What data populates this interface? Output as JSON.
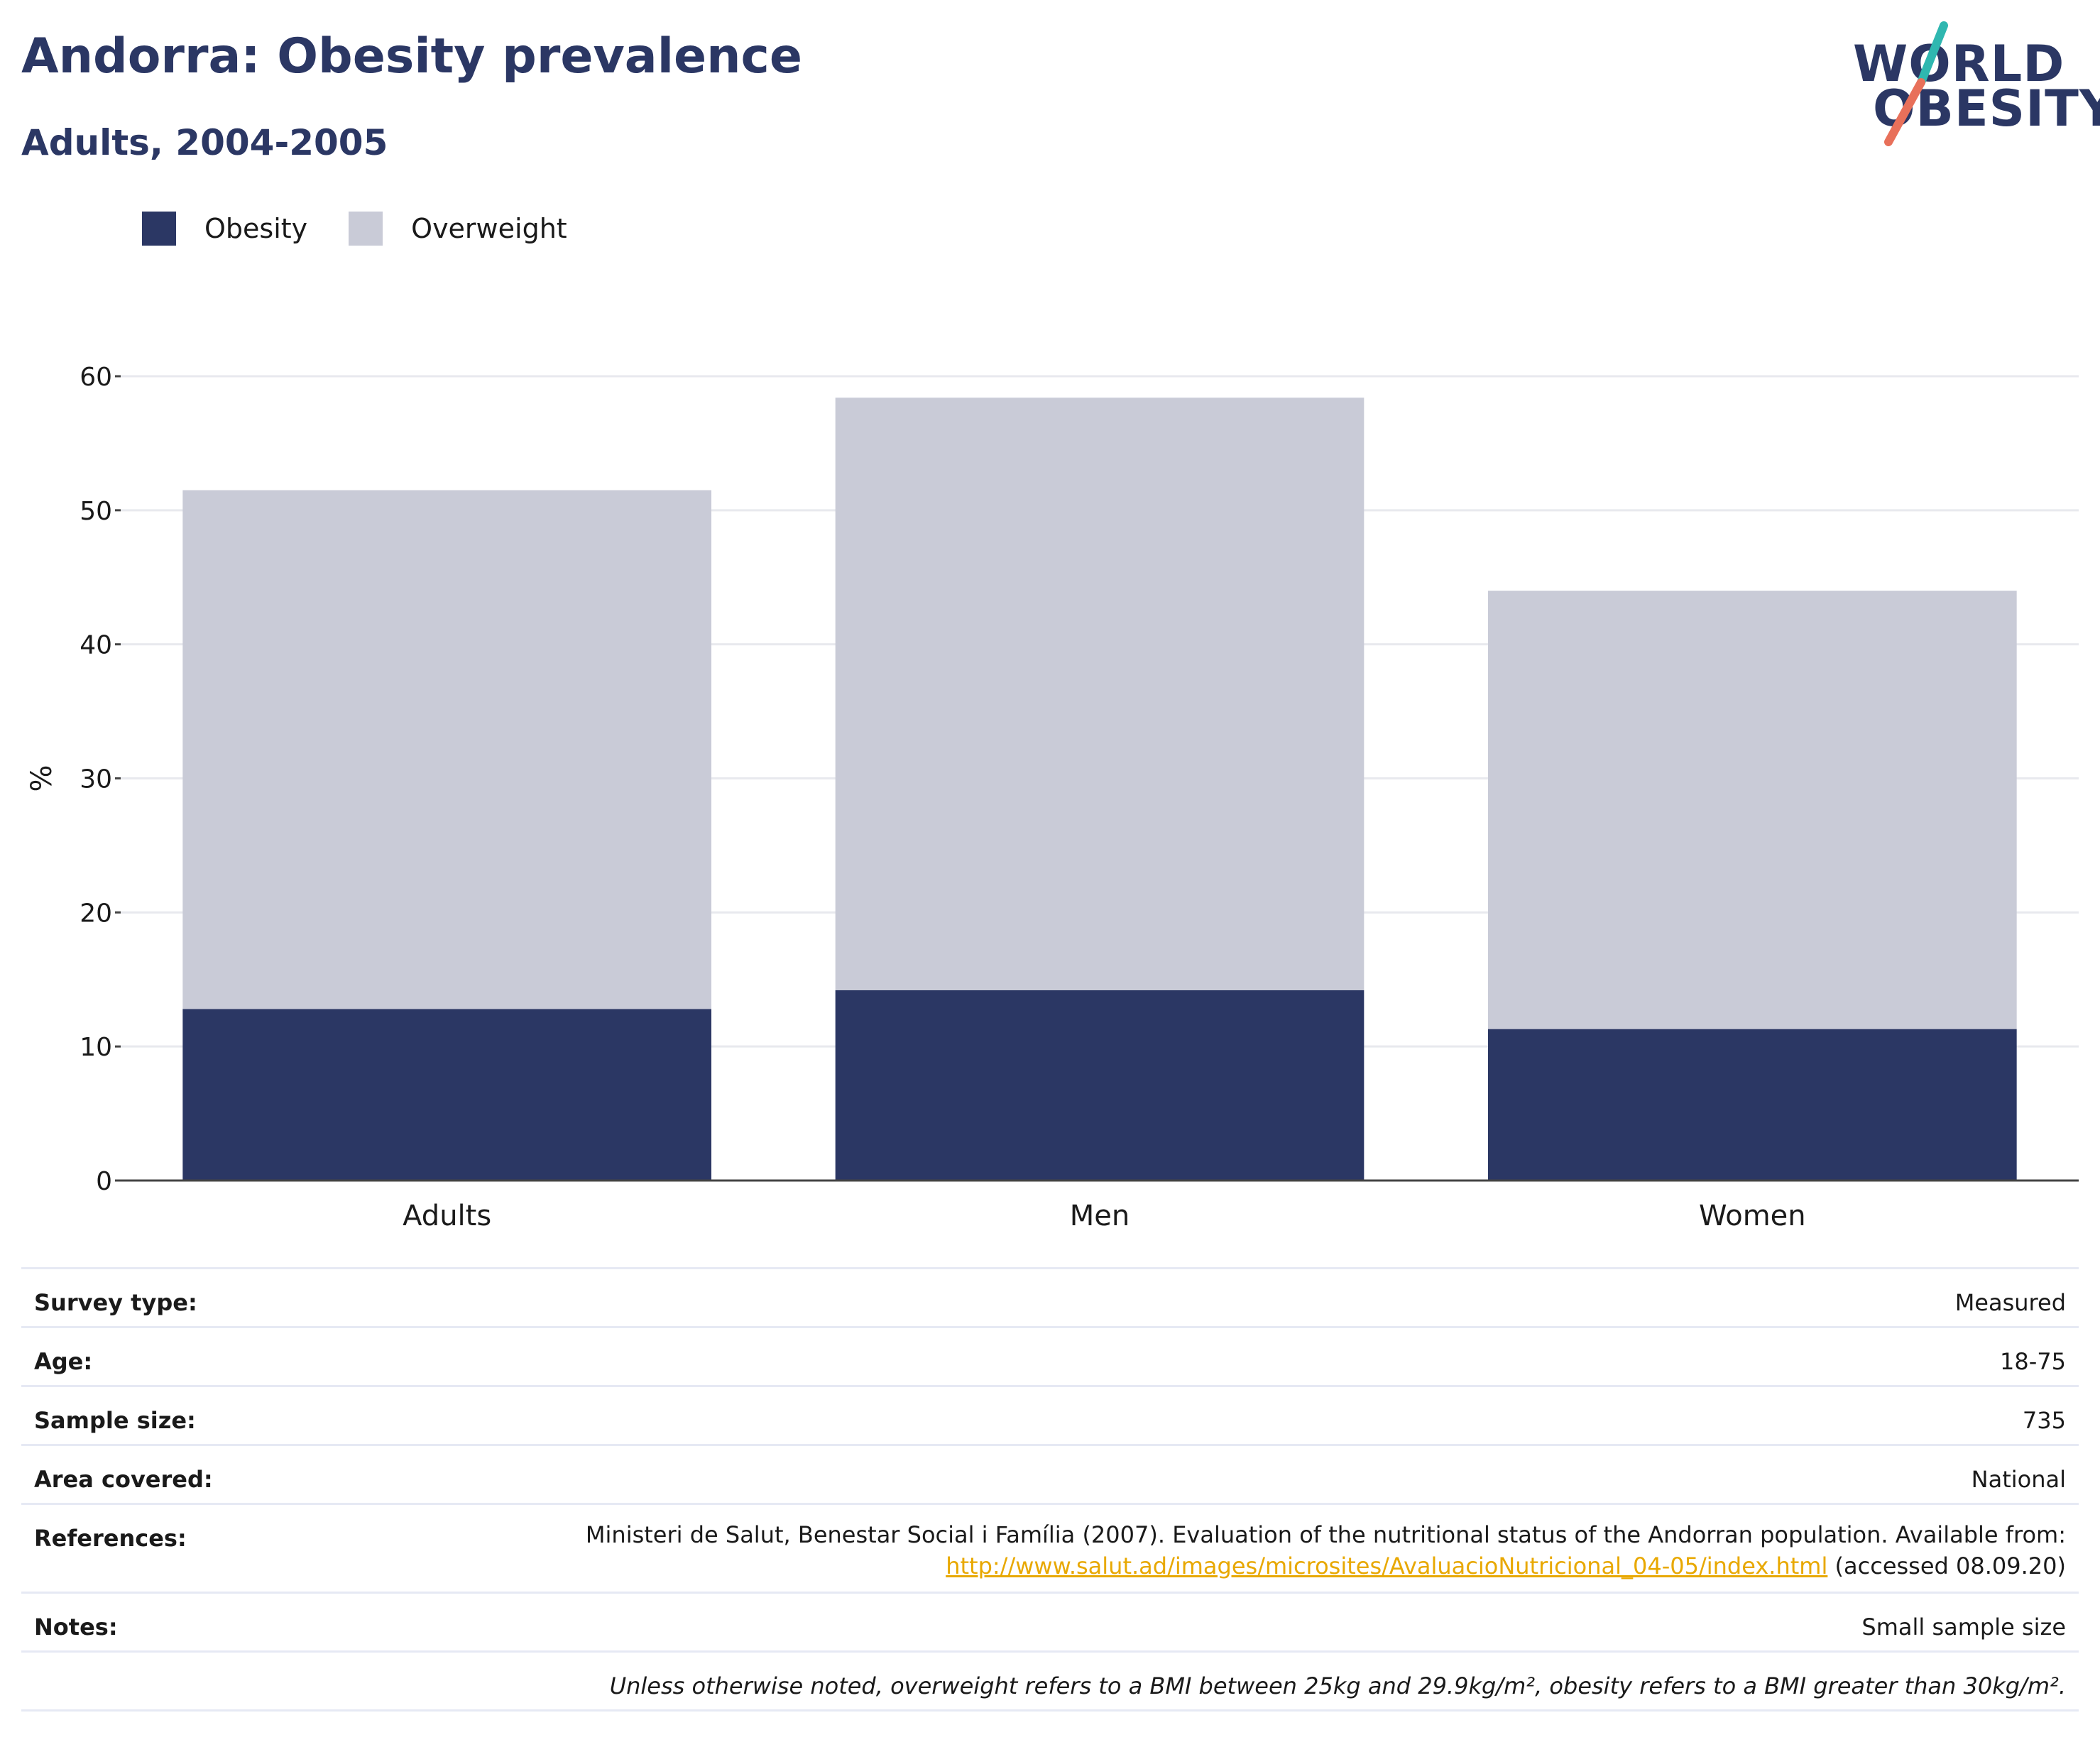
{
  "header": {
    "title": "Andorra: Obesity prevalence",
    "subtitle": "Adults, 2004-2005"
  },
  "logo": {
    "line1": "WORLD",
    "line2": "OBESITY"
  },
  "colors": {
    "obesity": "#2b3764",
    "overweight": "#c9cbd7",
    "accent_teal": "#2fb7b0",
    "accent_coral": "#e8705a",
    "link": "#e8a800"
  },
  "chart_data": {
    "type": "bar",
    "stacked": true,
    "categories": [
      "Adults",
      "Men",
      "Women"
    ],
    "series": [
      {
        "name": "Obesity",
        "values": [
          12.8,
          14.2,
          11.3
        ]
      },
      {
        "name": "Overweight",
        "values": [
          38.7,
          44.2,
          32.7
        ]
      }
    ],
    "ylabel": "%",
    "ylim": [
      0,
      60
    ],
    "yticks": [
      "0",
      "10",
      "20",
      "30",
      "40",
      "50",
      "60"
    ],
    "grid": true,
    "legend_position": "top-left"
  },
  "info": {
    "survey_type": {
      "label": "Survey type:",
      "value": "Measured"
    },
    "age": {
      "label": "Age:",
      "value": "18-75"
    },
    "sample_size": {
      "label": "Sample size:",
      "value": "735"
    },
    "area_covered": {
      "label": "Area covered:",
      "value": "National"
    },
    "references": {
      "label": "References:",
      "line1": "Ministeri de Salut, Benestar Social i Família (2007). Evaluation of the nutritional status of the Andorran population. Available from:",
      "link": "http://www.salut.ad/images/microsites/AvaluacioNutricional_04-05/index.html",
      "suffix": " (accessed 08.09.20)"
    },
    "notes": {
      "label": "Notes:",
      "value": "Small sample size"
    },
    "footnote": "Unless otherwise noted, overweight refers to a BMI between 25kg and 29.9kg/m², obesity refers to a BMI greater than 30kg/m²."
  }
}
